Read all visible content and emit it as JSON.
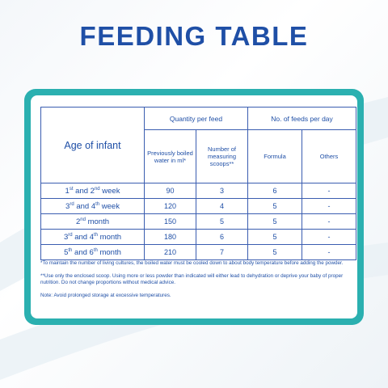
{
  "title": "FEEDING TABLE",
  "table": {
    "age_header": "Age of infant",
    "quantity_header": "Quantity per feed",
    "feeds_header": "No. of feeds per day",
    "sub_water": "Previously boiled water in ml*",
    "sub_scoops": "Number of measuring scoops**",
    "sub_formula": "Formula",
    "sub_others": "Others",
    "rows": [
      {
        "age_a": "1",
        "sup_a": "st",
        "mid": " and 2",
        "sup_b": "nd",
        "tail": " week",
        "water": "90",
        "scoops": "3",
        "formula": "6",
        "others": "-"
      },
      {
        "age_a": "3",
        "sup_a": "rd",
        "mid": " and 4",
        "sup_b": "th",
        "tail": " week",
        "water": "120",
        "scoops": "4",
        "formula": "5",
        "others": "-"
      },
      {
        "age_a": "2",
        "sup_a": "nd",
        "mid": "",
        "sup_b": "",
        "tail": " month",
        "water": "150",
        "scoops": "5",
        "formula": "5",
        "others": "-"
      },
      {
        "age_a": "3",
        "sup_a": "rd",
        "mid": " and 4",
        "sup_b": "th",
        "tail": " month",
        "water": "180",
        "scoops": "6",
        "formula": "5",
        "others": "-"
      },
      {
        "age_a": "5",
        "sup_a": "th",
        "mid": " and 6",
        "sup_b": "th",
        "tail": " month",
        "water": "210",
        "scoops": "7",
        "formula": "5",
        "others": "-"
      }
    ]
  },
  "notes": {
    "note1": "*To maintain the number of living cultures, the boiled water must be cooled down to about body temperature before adding the powder.",
    "note2": "**Use only the enclosed scoop. Using more or less powder than indicated will either lead to dehydration or deprive your baby of proper nutrition. Do not change proportions without medical advice.",
    "note3": "Note: Avoid prolonged storage at excessive temperatures."
  },
  "colors": {
    "title": "#1f4fa6",
    "panel_border": "#2bb0b0",
    "text": "#1f4fa6"
  }
}
